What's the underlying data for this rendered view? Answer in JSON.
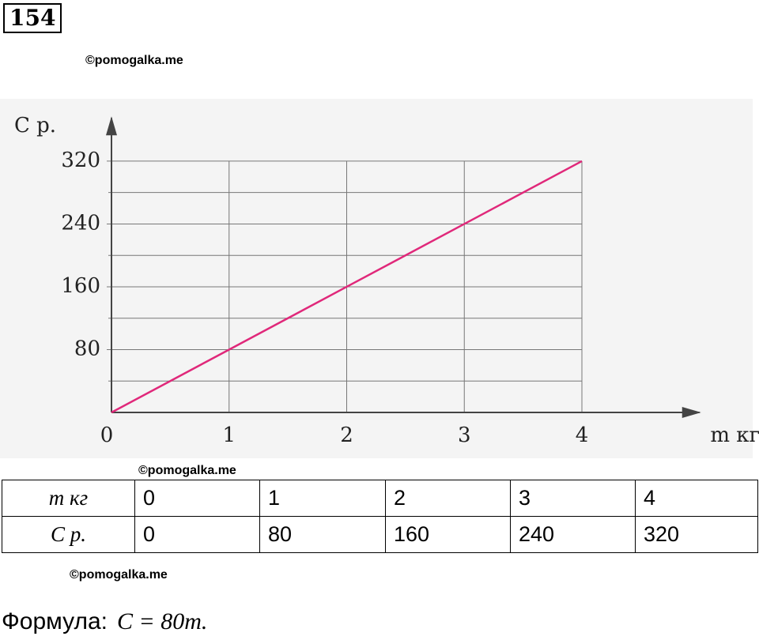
{
  "problem_number": "154",
  "watermarks": [
    "©pomogalka.me",
    "©pomogalka.me",
    "©pomogalka.me"
  ],
  "chart_data": {
    "type": "line",
    "color": "#e0287a",
    "x_label": "m кг",
    "y_label": "C р.",
    "x": [
      0,
      1,
      2,
      3,
      4
    ],
    "values": [
      0,
      80,
      160,
      240,
      320
    ],
    "xlim": [
      0,
      5
    ],
    "ylim": [
      0,
      375
    ],
    "xticks": [
      0,
      1,
      2,
      3,
      4
    ],
    "yticks": [
      80,
      160,
      240,
      320
    ],
    "yminor": [
      40,
      120,
      200,
      280
    ],
    "grid": true
  },
  "table": {
    "rows": [
      [
        "m кг",
        "0",
        "1",
        "2",
        "3",
        "4"
      ],
      [
        "C р.",
        "0",
        "80",
        "160",
        "240",
        "320"
      ]
    ]
  },
  "formula": {
    "label": "Формула:",
    "expression": "C = 80m."
  }
}
